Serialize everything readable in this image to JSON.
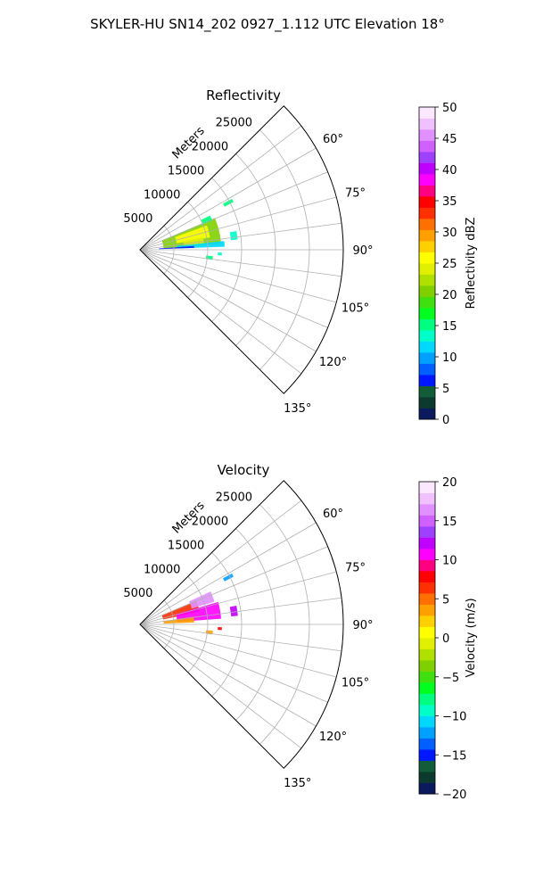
{
  "figure": {
    "title": "SKYLER-HU  SN14_202  0927_1.112 UTC Elevation 18°"
  },
  "chart_data": [
    {
      "type": "polar-sector",
      "title": "Reflectivity",
      "radial_axis_label": "Meters",
      "radial_ticks": [
        5000,
        10000,
        15000,
        20000,
        25000
      ],
      "radial_tick_labels": [
        "5000",
        "10000",
        "15000",
        "20000",
        "25000"
      ],
      "rlim": [
        0,
        30000
      ],
      "azimuth_range_deg": [
        45,
        135
      ],
      "azimuth_ticks": [
        60,
        75,
        90,
        105,
        120,
        135
      ],
      "azimuth_tick_labels": [
        "60°",
        "75°",
        "90°",
        "105°",
        "120°",
        "135°"
      ],
      "grid": true,
      "colorbar": {
        "label": "Reflectivity dBZ",
        "range": [
          0,
          50
        ],
        "ticks": [
          0,
          5,
          10,
          15,
          20,
          25,
          30,
          35,
          40,
          45,
          50
        ],
        "tick_labels": [
          "0",
          "5",
          "10",
          "15",
          "20",
          "25",
          "30",
          "35",
          "40",
          "45",
          "50"
        ],
        "colors": [
          "#0b1a5c",
          "#0d3a2f",
          "#125c3a",
          "#0018ff",
          "#0060ff",
          "#00a0ff",
          "#00d8ff",
          "#00ffc8",
          "#00ff80",
          "#00ff20",
          "#40e010",
          "#80d000",
          "#b0e000",
          "#e0f000",
          "#ffff00",
          "#ffd000",
          "#ffa000",
          "#ff7000",
          "#ff3000",
          "#ff0000",
          "#ff0080",
          "#ff00ff",
          "#c000ff",
          "#a040ff",
          "#d060ff",
          "#e090ff",
          "#f0c0ff",
          "#fbe8ff"
        ]
      },
      "echoes": [
        {
          "az": [
            67,
            86
          ],
          "r": [
            3500,
            12000
          ],
          "value": 20
        },
        {
          "az": [
            70,
            80
          ],
          "r": [
            5500,
            10500
          ],
          "value": 26
        },
        {
          "az": [
            79,
            87
          ],
          "r": [
            6500,
            9500
          ],
          "value": 24
        },
        {
          "az": [
            84,
            88
          ],
          "r": [
            5500,
            12500
          ],
          "value": 12
        },
        {
          "az": [
            86,
            88
          ],
          "r": [
            2800,
            8000
          ],
          "value": 6
        },
        {
          "az": [
            64,
            68
          ],
          "r": [
            10000,
            11500
          ],
          "value": 16
        },
        {
          "az": [
            79,
            84
          ],
          "r": [
            13500,
            14500
          ],
          "value": 14
        },
        {
          "az": [
            61,
            63
          ],
          "r": [
            14000,
            15500
          ],
          "value": 16
        },
        {
          "az": [
            95,
            98
          ],
          "r": [
            9800,
            10800
          ],
          "value": 16
        },
        {
          "az": [
            92,
            94
          ],
          "r": [
            11500,
            12100
          ],
          "value": 14
        }
      ]
    },
    {
      "type": "polar-sector",
      "title": "Velocity",
      "radial_axis_label": "Meters",
      "radial_ticks": [
        5000,
        10000,
        15000,
        20000,
        25000
      ],
      "radial_tick_labels": [
        "5000",
        "10000",
        "15000",
        "20000",
        "25000"
      ],
      "rlim": [
        0,
        30000
      ],
      "azimuth_range_deg": [
        45,
        135
      ],
      "azimuth_ticks": [
        60,
        75,
        90,
        105,
        120,
        135
      ],
      "azimuth_tick_labels": [
        "60°",
        "75°",
        "90°",
        "105°",
        "120°",
        "135°"
      ],
      "grid": true,
      "colorbar": {
        "label": "Velocity (m/s)",
        "range": [
          -20,
          20
        ],
        "ticks": [
          -20,
          -15,
          -10,
          -5,
          0,
          5,
          10,
          15,
          20
        ],
        "tick_labels": [
          "−20",
          "−15",
          "−10",
          "−5",
          "0",
          "5",
          "10",
          "15",
          "20"
        ],
        "colors": [
          "#0b1a5c",
          "#0d3a2f",
          "#125c3a",
          "#0018ff",
          "#0060ff",
          "#00a0ff",
          "#00d8ff",
          "#00ffc8",
          "#00ff80",
          "#00ff20",
          "#40e010",
          "#80d000",
          "#b0e000",
          "#e0f000",
          "#ffff00",
          "#ffd000",
          "#ffa000",
          "#ff7000",
          "#ff3000",
          "#ff0000",
          "#ff0080",
          "#ff00ff",
          "#c000ff",
          "#a040ff",
          "#d060ff",
          "#e090ff",
          "#f0c0ff",
          "#fbe8ff"
        ]
      },
      "echoes": [
        {
          "az": [
            67,
            78
          ],
          "r": [
            3500,
            9000
          ],
          "value": 6
        },
        {
          "az": [
            74,
            86
          ],
          "r": [
            5500,
            12000
          ],
          "value": 11
        },
        {
          "az": [
            65,
            73
          ],
          "r": [
            8000,
            11500
          ],
          "value": 16
        },
        {
          "az": [
            82,
            88
          ],
          "r": [
            3500,
            8000
          ],
          "value": 3
        },
        {
          "az": [
            79,
            85
          ],
          "r": [
            13500,
            14500
          ],
          "value": 12
        },
        {
          "az": [
            61,
            63
          ],
          "r": [
            14000,
            15500
          ],
          "value": -12
        },
        {
          "az": [
            95,
            98
          ],
          "r": [
            9800,
            10800
          ],
          "value": 4
        },
        {
          "az": [
            92,
            94
          ],
          "r": [
            11500,
            12100
          ],
          "value": 8
        }
      ]
    }
  ]
}
